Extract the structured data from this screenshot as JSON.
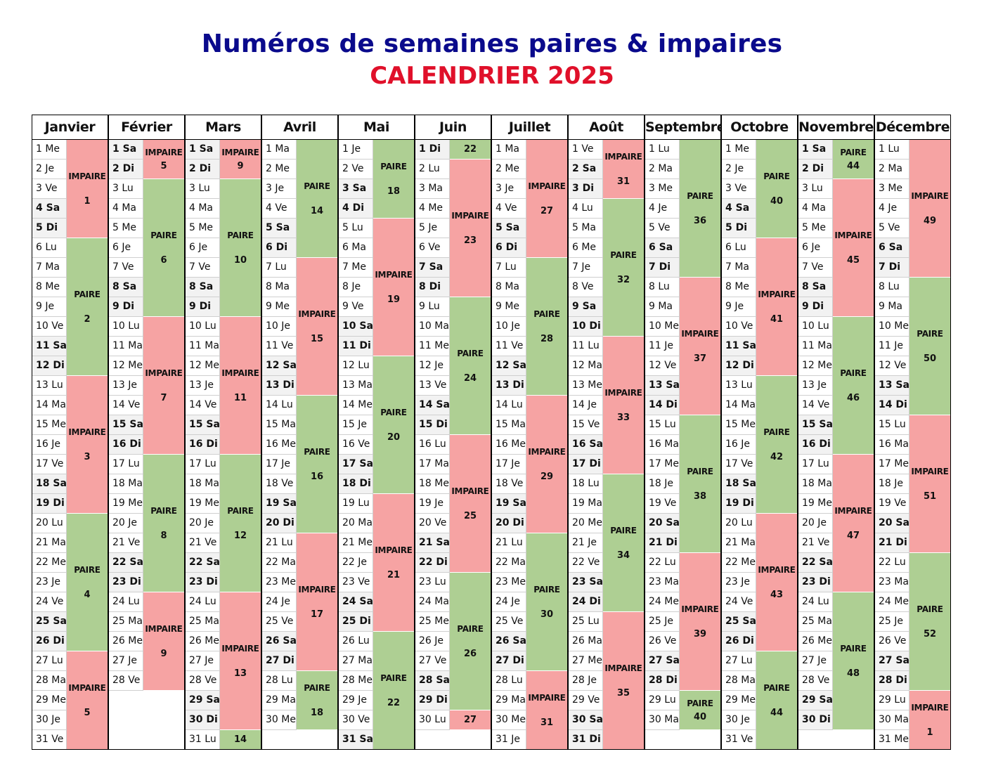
{
  "title": "Numéros de semaines paires & impaires",
  "subtitle": "CALENDRIER 2025",
  "labels": {
    "even": "PAIRE",
    "odd": "IMPAIRE"
  },
  "colors": {
    "even": "#aecf93",
    "odd": "#f6a3a3",
    "title": "#0a0a8c",
    "subtitle": "#e0102a"
  },
  "months": [
    {
      "name": "Janvier",
      "days": [
        "Me",
        "Je",
        "Ve",
        "Sa",
        "Di",
        "Lu",
        "Ma",
        "Me",
        "Je",
        "Ve",
        "Sa",
        "Di",
        "Lu",
        "Ma",
        "Me",
        "Je",
        "Ve",
        "Sa",
        "Di",
        "Lu",
        "Ma",
        "Me",
        "Je",
        "Ve",
        "Sa",
        "Di",
        "Lu",
        "Ma",
        "Me",
        "Je",
        "Ve"
      ],
      "weeks": [
        {
          "n": 1,
          "from": 1,
          "to": 5
        },
        {
          "n": 2,
          "from": 6,
          "to": 12
        },
        {
          "n": 3,
          "from": 13,
          "to": 19
        },
        {
          "n": 4,
          "from": 20,
          "to": 26
        },
        {
          "n": 5,
          "from": 27,
          "to": 31
        }
      ]
    },
    {
      "name": "Février",
      "days": [
        "Sa",
        "Di",
        "Lu",
        "Ma",
        "Me",
        "Je",
        "Ve",
        "Sa",
        "Di",
        "Lu",
        "Ma",
        "Me",
        "Je",
        "Ve",
        "Sa",
        "Di",
        "Lu",
        "Ma",
        "Me",
        "Je",
        "Ve",
        "Sa",
        "Di",
        "Lu",
        "Ma",
        "Me",
        "Je",
        "Ve"
      ],
      "weeks": [
        {
          "n": 5,
          "from": 1,
          "to": 2
        },
        {
          "n": 6,
          "from": 3,
          "to": 9
        },
        {
          "n": 7,
          "from": 10,
          "to": 16
        },
        {
          "n": 8,
          "from": 17,
          "to": 23
        },
        {
          "n": 9,
          "from": 24,
          "to": 28
        }
      ]
    },
    {
      "name": "Mars",
      "days": [
        "Sa",
        "Di",
        "Lu",
        "Ma",
        "Me",
        "Je",
        "Ve",
        "Sa",
        "Di",
        "Lu",
        "Ma",
        "Me",
        "Je",
        "Ve",
        "Sa",
        "Di",
        "Lu",
        "Ma",
        "Me",
        "Je",
        "Ve",
        "Sa",
        "Di",
        "Lu",
        "Ma",
        "Me",
        "Je",
        "Ve",
        "Sa",
        "Di",
        "Lu"
      ],
      "weeks": [
        {
          "n": 9,
          "from": 1,
          "to": 2
        },
        {
          "n": 10,
          "from": 3,
          "to": 9
        },
        {
          "n": 11,
          "from": 10,
          "to": 16
        },
        {
          "n": 12,
          "from": 17,
          "to": 23
        },
        {
          "n": 13,
          "from": 24,
          "to": 30
        },
        {
          "n": 14,
          "from": 31,
          "to": 31
        }
      ]
    },
    {
      "name": "Avril",
      "days": [
        "Ma",
        "Me",
        "Je",
        "Ve",
        "Sa",
        "Di",
        "Lu",
        "Ma",
        "Me",
        "Je",
        "Ve",
        "Sa",
        "Di",
        "Lu",
        "Ma",
        "Me",
        "Je",
        "Ve",
        "Sa",
        "Di",
        "Lu",
        "Ma",
        "Me",
        "Je",
        "Ve",
        "Sa",
        "Di",
        "Lu",
        "Ma",
        "Me"
      ],
      "weeks": [
        {
          "n": 14,
          "from": 1,
          "to": 6
        },
        {
          "n": 15,
          "from": 7,
          "to": 13
        },
        {
          "n": 16,
          "from": 14,
          "to": 20
        },
        {
          "n": 17,
          "from": 21,
          "to": 27
        },
        {
          "n": 18,
          "from": 28,
          "to": 30
        }
      ]
    },
    {
      "name": "Mai",
      "days": [
        "Je",
        "Ve",
        "Sa",
        "Di",
        "Lu",
        "Ma",
        "Me",
        "Je",
        "Ve",
        "Sa",
        "Di",
        "Lu",
        "Ma",
        "Me",
        "Je",
        "Ve",
        "Sa",
        "Di",
        "Lu",
        "Ma",
        "Me",
        "Je",
        "Ve",
        "Sa",
        "Di",
        "Lu",
        "Ma",
        "Me",
        "Je",
        "Ve",
        "Sa"
      ],
      "weeks": [
        {
          "n": 18,
          "from": 1,
          "to": 4
        },
        {
          "n": 19,
          "from": 5,
          "to": 11
        },
        {
          "n": 20,
          "from": 12,
          "to": 18
        },
        {
          "n": 21,
          "from": 19,
          "to": 25
        },
        {
          "n": 22,
          "from": 26,
          "to": 31
        }
      ]
    },
    {
      "name": "Juin",
      "days": [
        "Di",
        "Lu",
        "Ma",
        "Me",
        "Je",
        "Ve",
        "Sa",
        "Di",
        "Lu",
        "Ma",
        "Me",
        "Je",
        "Ve",
        "Sa",
        "Di",
        "Lu",
        "Ma",
        "Me",
        "Je",
        "Ve",
        "Sa",
        "Di",
        "Lu",
        "Ma",
        "Me",
        "Je",
        "Ve",
        "Sa",
        "Di",
        "Lu"
      ],
      "weeks": [
        {
          "n": 22,
          "from": 1,
          "to": 1
        },
        {
          "n": 23,
          "from": 2,
          "to": 8
        },
        {
          "n": 24,
          "from": 9,
          "to": 15
        },
        {
          "n": 25,
          "from": 16,
          "to": 22
        },
        {
          "n": 26,
          "from": 23,
          "to": 29
        },
        {
          "n": 27,
          "from": 30,
          "to": 30
        }
      ]
    },
    {
      "name": "Juillet",
      "days": [
        "Ma",
        "Me",
        "Je",
        "Ve",
        "Sa",
        "Di",
        "Lu",
        "Ma",
        "Me",
        "Je",
        "Ve",
        "Sa",
        "Di",
        "Lu",
        "Ma",
        "Me",
        "Je",
        "Ve",
        "Sa",
        "Di",
        "Lu",
        "Ma",
        "Me",
        "Je",
        "Ve",
        "Sa",
        "Di",
        "Lu",
        "Ma",
        "Me",
        "Je"
      ],
      "weeks": [
        {
          "n": 27,
          "from": 1,
          "to": 6
        },
        {
          "n": 28,
          "from": 7,
          "to": 13
        },
        {
          "n": 29,
          "from": 14,
          "to": 20
        },
        {
          "n": 30,
          "from": 21,
          "to": 27
        },
        {
          "n": 31,
          "from": 28,
          "to": 31
        }
      ]
    },
    {
      "name": "Août",
      "days": [
        "Ve",
        "Sa",
        "Di",
        "Lu",
        "Ma",
        "Me",
        "Je",
        "Ve",
        "Sa",
        "Di",
        "Lu",
        "Ma",
        "Me",
        "Je",
        "Ve",
        "Sa",
        "Di",
        "Lu",
        "Ma",
        "Me",
        "Je",
        "Ve",
        "Sa",
        "Di",
        "Lu",
        "Ma",
        "Me",
        "Je",
        "Ve",
        "Sa",
        "Di"
      ],
      "weeks": [
        {
          "n": 31,
          "from": 1,
          "to": 3
        },
        {
          "n": 32,
          "from": 4,
          "to": 10
        },
        {
          "n": 33,
          "from": 11,
          "to": 17
        },
        {
          "n": 34,
          "from": 18,
          "to": 24
        },
        {
          "n": 35,
          "from": 25,
          "to": 31
        }
      ]
    },
    {
      "name": "Septembre",
      "days": [
        "Lu",
        "Ma",
        "Me",
        "Je",
        "Ve",
        "Sa",
        "Di",
        "Lu",
        "Ma",
        "Me",
        "Je",
        "Ve",
        "Sa",
        "Di",
        "Lu",
        "Ma",
        "Me",
        "Je",
        "Ve",
        "Sa",
        "Di",
        "Lu",
        "Ma",
        "Me",
        "Je",
        "Ve",
        "Sa",
        "Di",
        "Lu",
        "Ma"
      ],
      "weeks": [
        {
          "n": 36,
          "from": 1,
          "to": 7
        },
        {
          "n": 37,
          "from": 8,
          "to": 14
        },
        {
          "n": 38,
          "from": 15,
          "to": 21
        },
        {
          "n": 39,
          "from": 22,
          "to": 28
        },
        {
          "n": 40,
          "from": 29,
          "to": 30
        }
      ]
    },
    {
      "name": "Octobre",
      "days": [
        "Me",
        "Je",
        "Ve",
        "Sa",
        "Di",
        "Lu",
        "Ma",
        "Me",
        "Je",
        "Ve",
        "Sa",
        "Di",
        "Lu",
        "Ma",
        "Me",
        "Je",
        "Ve",
        "Sa",
        "Di",
        "Lu",
        "Ma",
        "Me",
        "Je",
        "Ve",
        "Sa",
        "Di",
        "Lu",
        "Ma",
        "Me",
        "Je",
        "Ve"
      ],
      "weeks": [
        {
          "n": 40,
          "from": 1,
          "to": 5
        },
        {
          "n": 41,
          "from": 6,
          "to": 12
        },
        {
          "n": 42,
          "from": 13,
          "to": 19
        },
        {
          "n": 43,
          "from": 20,
          "to": 26
        },
        {
          "n": 44,
          "from": 27,
          "to": 31
        }
      ]
    },
    {
      "name": "Novembre",
      "days": [
        "Sa",
        "Di",
        "Lu",
        "Ma",
        "Me",
        "Je",
        "Ve",
        "Sa",
        "Di",
        "Lu",
        "Ma",
        "Me",
        "Je",
        "Ve",
        "Sa",
        "Di",
        "Lu",
        "Ma",
        "Me",
        "Je",
        "Ve",
        "Sa",
        "Di",
        "Lu",
        "Ma",
        "Me",
        "Je",
        "Ve",
        "Sa",
        "Di"
      ],
      "weeks": [
        {
          "n": 44,
          "from": 1,
          "to": 2
        },
        {
          "n": 45,
          "from": 3,
          "to": 9
        },
        {
          "n": 46,
          "from": 10,
          "to": 16
        },
        {
          "n": 47,
          "from": 17,
          "to": 23
        },
        {
          "n": 48,
          "from": 24,
          "to": 30
        }
      ]
    },
    {
      "name": "Décembre",
      "days": [
        "Lu",
        "Ma",
        "Me",
        "Je",
        "Ve",
        "Sa",
        "Di",
        "Lu",
        "Ma",
        "Me",
        "Je",
        "Ve",
        "Sa",
        "Di",
        "Lu",
        "Ma",
        "Me",
        "Je",
        "Ve",
        "Sa",
        "Di",
        "Lu",
        "Ma",
        "Me",
        "Je",
        "Ve",
        "Sa",
        "Di",
        "Lu",
        "Ma",
        "Me"
      ],
      "weeks": [
        {
          "n": 49,
          "from": 1,
          "to": 7
        },
        {
          "n": 50,
          "from": 8,
          "to": 14
        },
        {
          "n": 51,
          "from": 15,
          "to": 21
        },
        {
          "n": 52,
          "from": 22,
          "to": 28
        },
        {
          "n": 1,
          "from": 29,
          "to": 31
        }
      ]
    }
  ]
}
